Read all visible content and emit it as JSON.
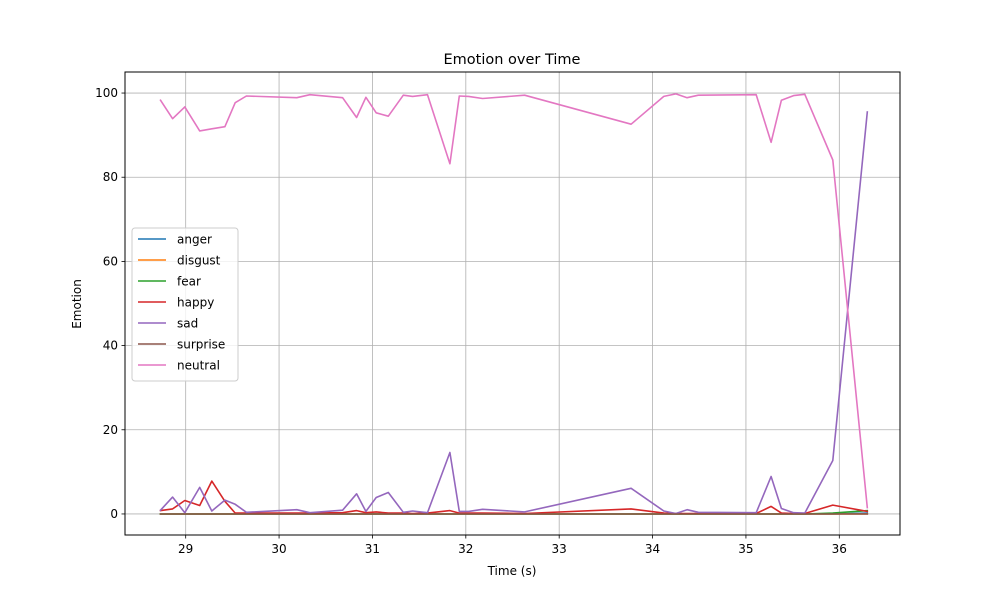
{
  "chart_data": {
    "type": "line",
    "title": "Emotion over Time",
    "xlabel": "Time (s)",
    "ylabel": "Emotion",
    "xlim": [
      28.35,
      36.65
    ],
    "ylim": [
      -5,
      105
    ],
    "xticks": [
      29,
      30,
      31,
      32,
      33,
      34,
      35,
      36
    ],
    "yticks": [
      0,
      20,
      40,
      60,
      80,
      100
    ],
    "grid": true,
    "legend_position": "center-left",
    "x": [
      28.73,
      28.86,
      28.99,
      29.15,
      29.28,
      29.42,
      29.53,
      29.65,
      30.19,
      30.33,
      30.68,
      30.83,
      30.93,
      31.04,
      31.17,
      31.33,
      31.43,
      31.59,
      31.83,
      31.93,
      32.03,
      32.18,
      32.63,
      33.77,
      34.12,
      34.25,
      34.37,
      34.49,
      35.11,
      35.27,
      35.38,
      35.51,
      35.63,
      35.93,
      36.3
    ],
    "series": [
      {
        "name": "anger",
        "color": "#1f77b4",
        "values": [
          0,
          0,
          0,
          0,
          0,
          0,
          0,
          0,
          0,
          0,
          0,
          0,
          0,
          0,
          0,
          0,
          0,
          0,
          0,
          0,
          0,
          0,
          0,
          0,
          0,
          0,
          0,
          0,
          0,
          0,
          0,
          0,
          0,
          0,
          0.2
        ]
      },
      {
        "name": "disgust",
        "color": "#ff7f0e",
        "values": [
          0,
          0,
          0,
          0,
          0,
          0,
          0,
          0,
          0,
          0,
          0,
          0,
          0,
          0,
          0,
          0,
          0,
          0,
          0,
          0,
          0,
          0,
          0,
          0,
          0,
          0,
          0,
          0,
          0,
          0,
          0,
          0,
          0,
          0,
          0
        ]
      },
      {
        "name": "fear",
        "color": "#2ca02c",
        "values": [
          0,
          0,
          0,
          0,
          0,
          0,
          0,
          0,
          0,
          0,
          0,
          0,
          0,
          0,
          0,
          0,
          0,
          0,
          0,
          0,
          0,
          0,
          0,
          0,
          0,
          0,
          0,
          0,
          0,
          0,
          0,
          0,
          0,
          0.2,
          0.8
        ]
      },
      {
        "name": "happy",
        "color": "#d62728",
        "values": [
          0.8,
          1.2,
          3.2,
          2.0,
          7.8,
          3.0,
          0.2,
          0.2,
          0.2,
          0.2,
          0.3,
          0.8,
          0.3,
          0.5,
          0.2,
          0.2,
          0.1,
          0.2,
          0.8,
          0.2,
          0.2,
          0.2,
          0.1,
          1.2,
          0.2,
          0.1,
          0.1,
          0.1,
          0.1,
          1.8,
          0.2,
          0.1,
          0.1,
          2.1,
          0.6
        ]
      },
      {
        "name": "sad",
        "color": "#9467bd",
        "values": [
          0.9,
          4.0,
          0.3,
          6.3,
          0.7,
          3.3,
          2.3,
          0.4,
          1.0,
          0.3,
          0.9,
          4.8,
          0.6,
          3.9,
          5.1,
          0.4,
          0.7,
          0.3,
          14.6,
          0.6,
          0.6,
          1.1,
          0.5,
          6.1,
          0.7,
          0.1,
          1.0,
          0.4,
          0.3,
          8.9,
          1.3,
          0.3,
          0.2,
          12.7,
          95.5
        ]
      },
      {
        "name": "surprise",
        "color": "#8c564b",
        "values": [
          0,
          0,
          0,
          0,
          0,
          0,
          0,
          0,
          0,
          0,
          0,
          0,
          0,
          0,
          0,
          0,
          0,
          0,
          0,
          0,
          0,
          0,
          0,
          0,
          0,
          0,
          0,
          0,
          0,
          0,
          0,
          0,
          0,
          0,
          0
        ]
      },
      {
        "name": "neutral",
        "color": "#e377c2",
        "values": [
          98.3,
          93.9,
          96.7,
          91.0,
          91.5,
          92.0,
          97.7,
          99.3,
          98.9,
          99.6,
          98.9,
          94.2,
          99.0,
          95.3,
          94.5,
          99.5,
          99.2,
          99.6,
          83.2,
          99.3,
          99.2,
          98.7,
          99.5,
          92.6,
          99.2,
          99.8,
          98.9,
          99.5,
          99.6,
          88.3,
          98.3,
          99.4,
          99.7,
          84.1,
          1.5
        ]
      }
    ]
  }
}
